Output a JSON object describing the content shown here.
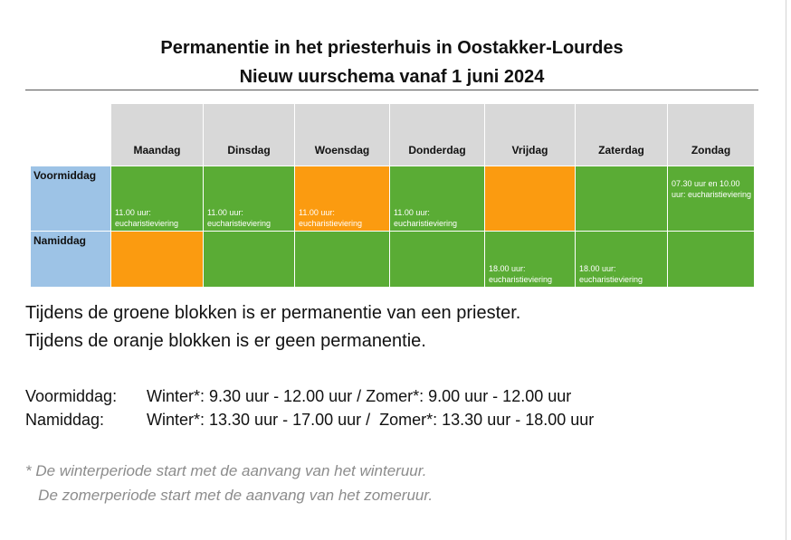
{
  "title": {
    "line1": "Permanentie in het priesterhuis in Oostakker-Lourdes",
    "line2": "Nieuw uurschema vanaf 1 juni 2024"
  },
  "schedule": {
    "days": [
      "Maandag",
      "Dinsdag",
      "Woensdag",
      "Donderdag",
      "Vrijdag",
      "Zaterdag",
      "Zondag"
    ],
    "rows": [
      {
        "label": "Voormiddag",
        "cells": [
          {
            "color": "green",
            "text": "11.00 uur: eucharistieviering"
          },
          {
            "color": "green",
            "text": "11.00 uur: eucharistieviering"
          },
          {
            "color": "orange",
            "text": "11.00 uur: eucharistieviering"
          },
          {
            "color": "green",
            "text": "11.00 uur: eucharistieviering"
          },
          {
            "color": "orange",
            "text": ""
          },
          {
            "color": "green",
            "text": ""
          },
          {
            "color": "green",
            "text": "07.30 uur en 10.00 uur: eucharistieviering"
          }
        ]
      },
      {
        "label": "Namiddag",
        "cells": [
          {
            "color": "orange",
            "text": ""
          },
          {
            "color": "green",
            "text": ""
          },
          {
            "color": "green",
            "text": ""
          },
          {
            "color": "green",
            "text": ""
          },
          {
            "color": "green",
            "text": "18.00 uur: eucharistieviering"
          },
          {
            "color": "green",
            "text": "18.00 uur: eucharistieviering"
          },
          {
            "color": "green",
            "text": ""
          }
        ]
      }
    ],
    "colors": {
      "green": "#5aac35",
      "orange": "#fb9b10",
      "header": "#d8d8d8",
      "rowhead": "#9dc3e6"
    }
  },
  "legend": {
    "green": "Tijdens de groene blokken is er permanentie van een priester.",
    "orange": "Tijdens de oranje blokken is er geen permanentie."
  },
  "hours": {
    "morning_label": "Voormiddag:",
    "morning_value": "Winter*: 9.30 uur - 12.00 uur / Zomer*: 9.00 uur - 12.00 uur",
    "afternoon_label": "Namiddag:",
    "afternoon_value": "Winter*: 13.30 uur - 17.00 uur /  Zomer*: 13.30 uur - 18.00 uur"
  },
  "footnote": {
    "line1": "* De winterperiode start met de aanvang van het winteruur.",
    "line2": "   De zomerperiode start met de aanvang van het zomeruur."
  }
}
